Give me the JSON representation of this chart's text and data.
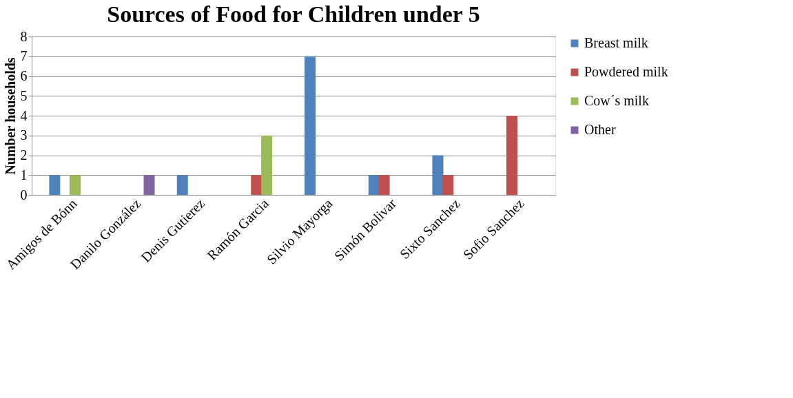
{
  "chart_data": {
    "type": "bar",
    "title": "Sources of Food for Children under 5",
    "ylabel": "Number households",
    "categories": [
      "Amigos de Bónn",
      "Danilo González",
      "Denis Gutierez",
      "Ramón Garcia",
      "Silvio Mayorga",
      "Simón Bolivar",
      "Sixto Sanchez",
      "Sofio Sanchez"
    ],
    "series": [
      {
        "name": "Breast milk",
        "color": "#4f81bd",
        "values": [
          1,
          0,
          1,
          0,
          7,
          1,
          2,
          0
        ]
      },
      {
        "name": "Powdered milk",
        "color": "#c0504d",
        "values": [
          0,
          0,
          0,
          1,
          0,
          1,
          1,
          4
        ]
      },
      {
        "name": "Cow´s milk",
        "color": "#9bbb59",
        "values": [
          1,
          0,
          0,
          3,
          0,
          0,
          0,
          0
        ]
      },
      {
        "name": "Other",
        "color": "#8064a2",
        "values": [
          0,
          1,
          0,
          0,
          0,
          0,
          0,
          0
        ]
      }
    ],
    "ylim": [
      0,
      8
    ],
    "yticks": [
      0,
      1,
      2,
      3,
      4,
      5,
      6,
      7,
      8
    ],
    "grid": "y",
    "legend": "right"
  }
}
